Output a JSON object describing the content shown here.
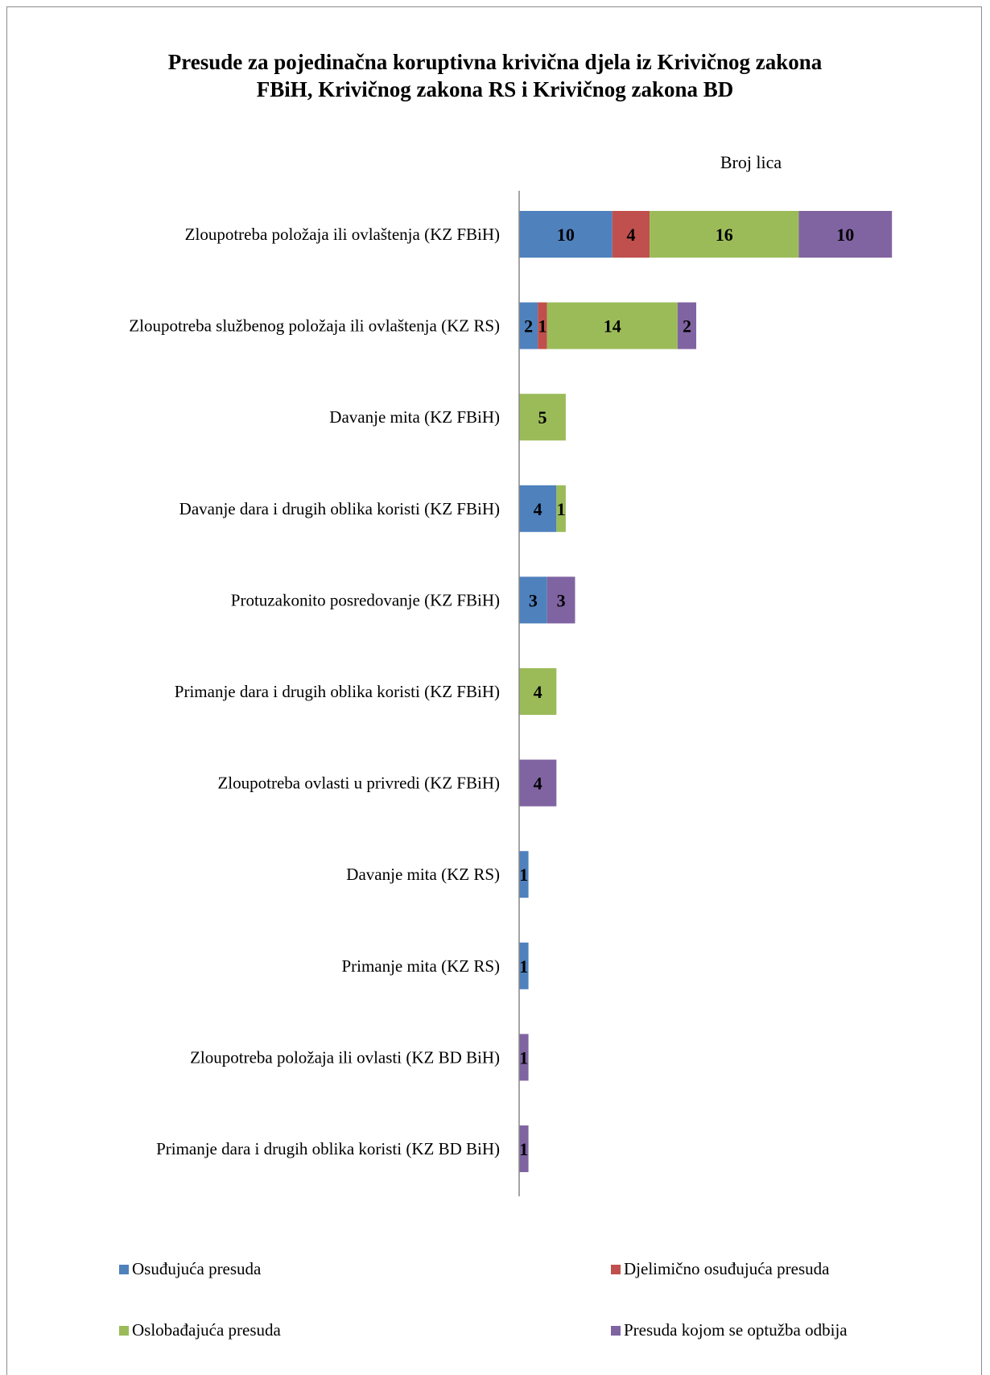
{
  "chart_data": {
    "type": "bar",
    "orientation": "horizontal",
    "stacked": true,
    "title_line1": "Presude za pojedinačna koruptivna krivična djela iz Krivičnog zakona",
    "title_line2": "FBiH, Krivičnog zakona RS i Krivičnog zakona BD",
    "xlabel": "Broj lica",
    "categories": [
      "Zloupotreba položaja ili ovlaštenja (KZ FBiH)",
      "Zloupotreba službenog položaja ili ovlaštenja (KZ RS)",
      "Davanje mita (KZ FBiH)",
      "Davanje dara i drugih oblika koristi (KZ FBiH)",
      "Protuzakonito posredovanje (KZ FBiH)",
      "Primanje dara i drugih oblika koristi (KZ FBiH)",
      "Zloupotreba ovlasti u privredi (KZ FBiH)",
      "Davanje mita (KZ RS)",
      "Primanje mita (KZ RS)",
      "Zloupotreba položaja ili ovlasti (KZ BD BiH)",
      "Primanje dara i drugih oblika koristi (KZ BD BiH)"
    ],
    "series": [
      {
        "name": "Osuđujuća presuda",
        "color": "#4f81bd",
        "values": [
          10,
          2,
          0,
          4,
          3,
          0,
          0,
          1,
          1,
          0,
          0
        ]
      },
      {
        "name": "Djelimično osuđujuća presuda",
        "color": "#c0504d",
        "values": [
          4,
          1,
          0,
          0,
          0,
          0,
          0,
          0,
          0,
          0,
          0
        ]
      },
      {
        "name": "Oslobađajuća presuda",
        "color": "#9bbb59",
        "values": [
          16,
          14,
          5,
          1,
          0,
          4,
          0,
          0,
          0,
          0,
          0
        ]
      },
      {
        "name": "Presuda kojom se optužba odbija",
        "color": "#8064a2",
        "values": [
          10,
          2,
          0,
          0,
          3,
          0,
          4,
          0,
          0,
          1,
          1
        ]
      }
    ],
    "legend_position": "bottom",
    "grid": false
  }
}
